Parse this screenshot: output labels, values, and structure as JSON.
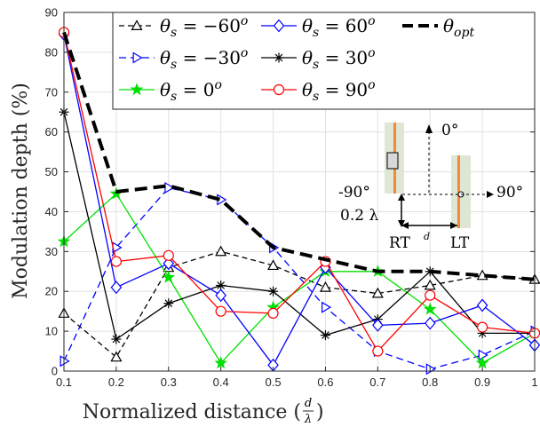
{
  "chart_data": {
    "type": "line",
    "xlabel": "Normalized distance (d/λ)",
    "ylabel": "Modulation depth (%)",
    "xlim": [
      0.1,
      1.0
    ],
    "ylim": [
      0,
      90
    ],
    "grid": true,
    "legend_placement": "top",
    "x": [
      0.1,
      0.2,
      0.3,
      0.4,
      0.5,
      0.6,
      0.7,
      0.8,
      0.9,
      1.0
    ],
    "xticks": [
      "0.1",
      "0.2",
      "0.3",
      "0.4",
      "0.5",
      "0.6",
      "0.7",
      "0.8",
      "0.9",
      "1"
    ],
    "yticks": [
      "0",
      "10",
      "20",
      "30",
      "40",
      "50",
      "60",
      "70",
      "80",
      "90"
    ],
    "series": [
      {
        "name": "θs = −60°",
        "label_var": "θ",
        "label_sub": "s",
        "label_eq": " = −60",
        "label_sup": "o",
        "color": "#000000",
        "dash": "6,4",
        "width": 1.3,
        "marker": "triangle",
        "values": [
          14.5,
          3.5,
          26,
          30,
          26.5,
          21,
          19.5,
          21.5,
          24,
          23
        ]
      },
      {
        "name": "θs = −30°",
        "label_var": "θ",
        "label_sub": "s",
        "label_eq": " = −30",
        "label_sup": "o",
        "color": "#0000ff",
        "dash": "8,5",
        "width": 1.3,
        "marker": "triangle-right",
        "values": [
          2.5,
          31,
          46,
          43,
          31,
          16,
          5,
          0.5,
          4,
          10
        ]
      },
      {
        "name": "θs = 0°",
        "label_var": "θ",
        "label_sub": "s",
        "label_eq": " = 0",
        "label_sup": "o",
        "color": "#00e000",
        "dash": "",
        "width": 1.3,
        "marker": "star",
        "values": [
          32.5,
          44.5,
          23.5,
          2,
          16,
          25,
          25,
          15.5,
          2,
          9.5
        ]
      },
      {
        "name": "θs = 60°",
        "label_var": "θ",
        "label_sub": "s",
        "label_eq": " = 60",
        "label_sup": "o",
        "color": "#0000ff",
        "dash": "",
        "width": 1.3,
        "marker": "diamond",
        "values": [
          84.5,
          21,
          27,
          19,
          1.5,
          26,
          11.5,
          12,
          16.5,
          6.5
        ]
      },
      {
        "name": "θs = 30°",
        "label_var": "θ",
        "label_sub": "s",
        "label_eq": " = 30",
        "label_sup": "o",
        "color": "#000000",
        "dash": "",
        "width": 1.3,
        "marker": "asterisk",
        "values": [
          65,
          8,
          17,
          21.5,
          20,
          9,
          13,
          25,
          9.5,
          9.5
        ]
      },
      {
        "name": "θs = 90°",
        "label_var": "θ",
        "label_sub": "s",
        "label_eq": " = 90",
        "label_sup": "o",
        "color": "#ff0000",
        "dash": "",
        "width": 1.3,
        "marker": "circle",
        "values": [
          85,
          27.5,
          29,
          15,
          14.5,
          27.5,
          5,
          19,
          11,
          9.5
        ]
      },
      {
        "name": "θopt",
        "label_var": "θ",
        "label_sub": "opt",
        "label_eq": "",
        "label_sup": "",
        "color": "#000000",
        "dash": "14,7",
        "width": 4,
        "marker": "none",
        "values": [
          85,
          45,
          46.5,
          43,
          31,
          28,
          25,
          25,
          24,
          23
        ]
      }
    ],
    "inset": {
      "angle_top": "0°",
      "angle_left": "-90°",
      "angle_right": "90°",
      "height_label": "0.2 λ",
      "distance_label": "d",
      "left_antenna": "RT",
      "right_antenna": "LT"
    }
  }
}
